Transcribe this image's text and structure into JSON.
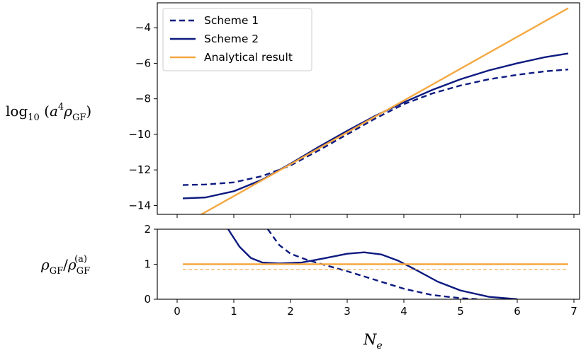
{
  "chart_data": [
    {
      "type": "line",
      "panel": "top",
      "ylabel": "log10 (a^4 ρ_GF)",
      "ylabel_parts": {
        "log": "log",
        "log_sub": "10",
        "a": "a",
        "a_sup": "4",
        "rho": "ρ",
        "rho_sub": "GF"
      },
      "xlim": [
        -0.35,
        7.1
      ],
      "ylim": [
        -14.5,
        -2.6
      ],
      "yticks": [
        -14,
        -12,
        -10,
        -8,
        -6,
        -4
      ],
      "ytick_labels": [
        "−14",
        "−12",
        "−10",
        "−8",
        "−6",
        "−4"
      ],
      "legend_position": "upper-left",
      "grid": false,
      "series": [
        {
          "name": "Scheme 1",
          "style": "dashed",
          "color": "#0d1a80",
          "x": [
            0.1,
            0.5,
            1.0,
            1.5,
            2.0,
            2.5,
            3.0,
            3.5,
            4.0,
            4.5,
            5.0,
            5.5,
            6.0,
            6.5,
            6.9
          ],
          "y": [
            -12.85,
            -12.82,
            -12.7,
            -12.35,
            -11.75,
            -10.9,
            -10.0,
            -9.1,
            -8.3,
            -7.7,
            -7.25,
            -6.9,
            -6.65,
            -6.45,
            -6.35
          ]
        },
        {
          "name": "Scheme 2",
          "style": "solid",
          "color": "#0d1a80",
          "x": [
            0.1,
            0.5,
            1.0,
            1.5,
            2.0,
            2.5,
            3.0,
            3.5,
            4.0,
            4.5,
            5.0,
            5.5,
            6.0,
            6.5,
            6.9
          ],
          "y": [
            -13.6,
            -13.55,
            -13.2,
            -12.55,
            -11.65,
            -10.7,
            -9.8,
            -8.95,
            -8.2,
            -7.5,
            -6.9,
            -6.4,
            -6.0,
            -5.65,
            -5.45
          ]
        },
        {
          "name": "Analytical result",
          "style": "solid",
          "color": "#f5a842",
          "x": [
            0.4,
            6.9
          ],
          "y": [
            -14.55,
            -2.9
          ]
        }
      ]
    },
    {
      "type": "line",
      "panel": "bottom",
      "xlabel": "N_e",
      "xlabel_parts": {
        "main": "N",
        "sub": "e"
      },
      "ylabel": "ρ_GF / ρ_GF^(a)",
      "ylabel_parts": {
        "rho": "ρ",
        "sub": "GF",
        "slash": "/",
        "sup": "(a)"
      },
      "xlim": [
        -0.35,
        7.1
      ],
      "ylim": [
        0,
        2
      ],
      "xticks": [
        0,
        1,
        2,
        3,
        4,
        5,
        6,
        7
      ],
      "xtick_labels": [
        "0",
        "1",
        "2",
        "3",
        "4",
        "5",
        "6",
        "7"
      ],
      "yticks": [
        0,
        1,
        2
      ],
      "ytick_labels": [
        "0",
        "1",
        "2"
      ],
      "grid": false,
      "series": [
        {
          "style": "dashed",
          "color": "#0d1a80",
          "x": [
            1.6,
            1.8,
            2.0,
            2.3,
            2.6,
            3.0,
            3.5,
            4.0,
            4.5,
            5.0,
            5.3
          ],
          "y": [
            2.0,
            1.55,
            1.3,
            1.12,
            0.98,
            0.8,
            0.55,
            0.3,
            0.12,
            0.03,
            0.0
          ]
        },
        {
          "style": "solid",
          "color": "#0d1a80",
          "x": [
            0.9,
            1.1,
            1.3,
            1.5,
            1.8,
            2.2,
            2.6,
            3.0,
            3.3,
            3.6,
            3.9,
            4.2,
            4.6,
            5.0,
            5.5,
            6.0
          ],
          "y": [
            2.0,
            1.5,
            1.18,
            1.05,
            1.02,
            1.05,
            1.17,
            1.3,
            1.34,
            1.28,
            1.1,
            0.85,
            0.5,
            0.25,
            0.07,
            0.0
          ]
        },
        {
          "style": "solid",
          "color": "#f5a842",
          "x": [
            0.1,
            6.9
          ],
          "y": [
            1.0,
            1.0
          ]
        },
        {
          "style": "dashed-thin",
          "color": "#f5a842",
          "x": [
            0.1,
            6.9
          ],
          "y": [
            0.85,
            0.85
          ]
        }
      ]
    }
  ]
}
